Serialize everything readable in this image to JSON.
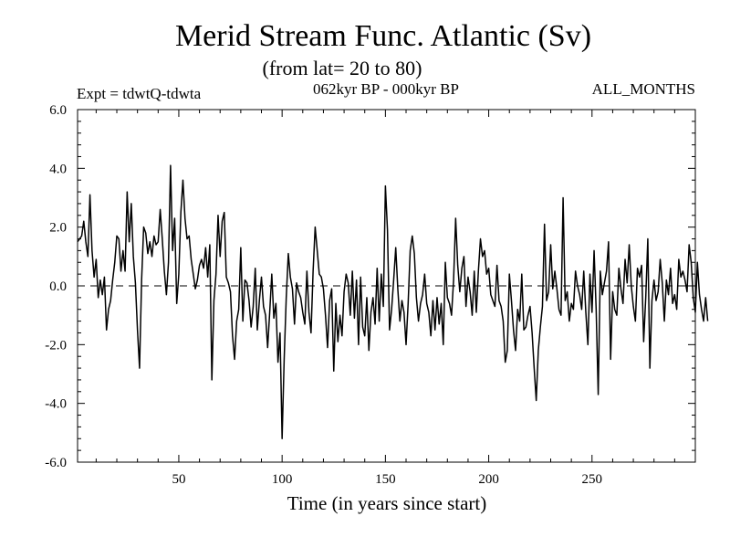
{
  "chart_data": {
    "type": "line",
    "title": "Merid Stream Func. Atlantic (Sv)",
    "subtitle": "(from lat= 20 to 80)",
    "left_label": "Expt = tdwtQ-tdwta",
    "center_label": "062kyr BP - 000kyr BP",
    "right_label": "ALL_MONTHS",
    "xlabel": "Time (in years since start)",
    "ylabel": "",
    "xlim": [
      1,
      300
    ],
    "ylim": [
      -6,
      6
    ],
    "x_ticks": [
      50,
      100,
      150,
      200,
      250
    ],
    "x_tick_labels": [
      "50",
      "100",
      "150",
      "200",
      "250"
    ],
    "y_ticks": [
      -6,
      -4,
      -2,
      0,
      2,
      4,
      6
    ],
    "y_tick_labels": [
      "-6.0",
      "-4.0",
      "-2.0",
      "0.0",
      "2.0",
      "4.0",
      "6.0"
    ],
    "reference_line": 0,
    "series": [
      {
        "name": "Merid Stream Func. Atlantic",
        "x_start": 1,
        "x_step": 1,
        "values": [
          1.5,
          1.6,
          1.7,
          2.2,
          1.5,
          1.0,
          3.1,
          1.2,
          0.3,
          0.9,
          -0.4,
          0.2,
          -0.3,
          0.3,
          -1.5,
          -0.8,
          -0.5,
          0.2,
          0.8,
          1.7,
          1.6,
          0.5,
          1.2,
          0.5,
          3.2,
          1.5,
          2.8,
          1.0,
          0.1,
          -1.5,
          -2.8,
          0.2,
          2.0,
          1.8,
          1.1,
          1.5,
          1.0,
          1.7,
          1.4,
          1.5,
          2.6,
          1.6,
          0.5,
          -0.3,
          0.8,
          4.1,
          1.2,
          2.3,
          -0.6,
          0.4,
          2.5,
          3.6,
          2.3,
          1.6,
          1.7,
          0.9,
          0.4,
          -0.1,
          0.2,
          0.7,
          0.9,
          0.6,
          1.3,
          0.3,
          1.4,
          -3.2,
          -0.5,
          0.4,
          2.4,
          1.0,
          2.2,
          2.5,
          0.3,
          0.1,
          -0.2,
          -1.7,
          -2.5,
          -1.2,
          -0.8,
          1.3,
          -1.2,
          0.2,
          0.1,
          -0.5,
          -1.4,
          -0.7,
          0.6,
          -1.5,
          -0.5,
          0.3,
          -0.7,
          -1.0,
          -2.1,
          -0.9,
          0.4,
          -1.1,
          -0.6,
          -2.6,
          -1.6,
          -5.2,
          -2.5,
          -0.4,
          1.1,
          0.3,
          -0.1,
          -1.3,
          0.1,
          -0.2,
          -0.4,
          -0.9,
          -1.3,
          0.5,
          -0.9,
          -1.6,
          0.5,
          2.0,
          1.2,
          0.4,
          0.3,
          -0.1,
          -1.0,
          -2.1,
          -0.5,
          -0.1,
          -2.9,
          -0.6,
          -1.9,
          -1.0,
          -1.7,
          -0.2,
          0.4,
          0.1,
          -1.0,
          0.5,
          -1.1,
          0.2,
          -2.0,
          0.3,
          -1.4,
          -1.7,
          -0.4,
          -2.2,
          -0.9,
          -0.4,
          -1.3,
          0.6,
          -1.2,
          0.4,
          -0.7,
          3.4,
          1.9,
          -1.5,
          -0.8,
          0.2,
          1.3,
          -0.1,
          -1.2,
          -0.5,
          -0.9,
          -2.0,
          -0.6,
          1.2,
          1.7,
          1.1,
          -0.4,
          -1.2,
          -0.6,
          -0.3,
          0.4,
          -0.6,
          -0.9,
          -1.7,
          -0.5,
          -1.5,
          -0.4,
          -1.3,
          -0.6,
          -2.0,
          0.8,
          -0.4,
          -0.6,
          -1.0,
          0.2,
          2.3,
          0.7,
          -0.2,
          0.6,
          1.0,
          -0.7,
          0.3,
          -0.2,
          -1.0,
          0.5,
          -0.9,
          0.5,
          1.6,
          1.0,
          1.2,
          0.4,
          0.6,
          -0.3,
          -0.5,
          -0.7,
          0.7,
          -0.5,
          -0.7,
          -1.2,
          -2.6,
          -2.2,
          0.4,
          -0.5,
          -1.5,
          -2.2,
          -0.8,
          -1.2,
          0.4,
          -1.5,
          -1.4,
          -1.0,
          -0.7,
          -1.6,
          -2.8,
          -3.9,
          -2.2,
          -1.4,
          -0.7,
          2.1,
          -0.5,
          -0.2,
          1.4,
          -0.1,
          0.5,
          -0.1,
          -0.8,
          -1.0,
          3.0,
          -0.5,
          -0.2,
          -1.2,
          -0.6,
          -0.8,
          0.5,
          0.0,
          -0.3,
          -0.8,
          0.5,
          -0.9,
          -2.0,
          0.4,
          -0.9,
          1.2,
          -0.8,
          -3.7,
          0.5,
          -0.3,
          0.1,
          0.5,
          1.5,
          -2.5,
          -0.2,
          -0.8,
          -1.0,
          0.6,
          -0.1,
          -0.6,
          0.9,
          0.1,
          1.4,
          0.0,
          -0.7,
          -1.2,
          0.6,
          0.3,
          0.7,
          -1.9,
          -0.4,
          1.6,
          -2.8,
          -0.5,
          0.2,
          -0.5,
          -0.2,
          0.9,
          0.1,
          -1.2,
          0.2,
          -0.3,
          0.6,
          -0.6,
          -0.3,
          -0.8,
          0.9,
          0.3,
          0.5,
          0.2,
          -0.2,
          1.4,
          0.8,
          -0.4,
          -0.9,
          0.8,
          -0.3,
          -0.8,
          -1.2,
          -0.4,
          -1.2
        ]
      }
    ]
  }
}
